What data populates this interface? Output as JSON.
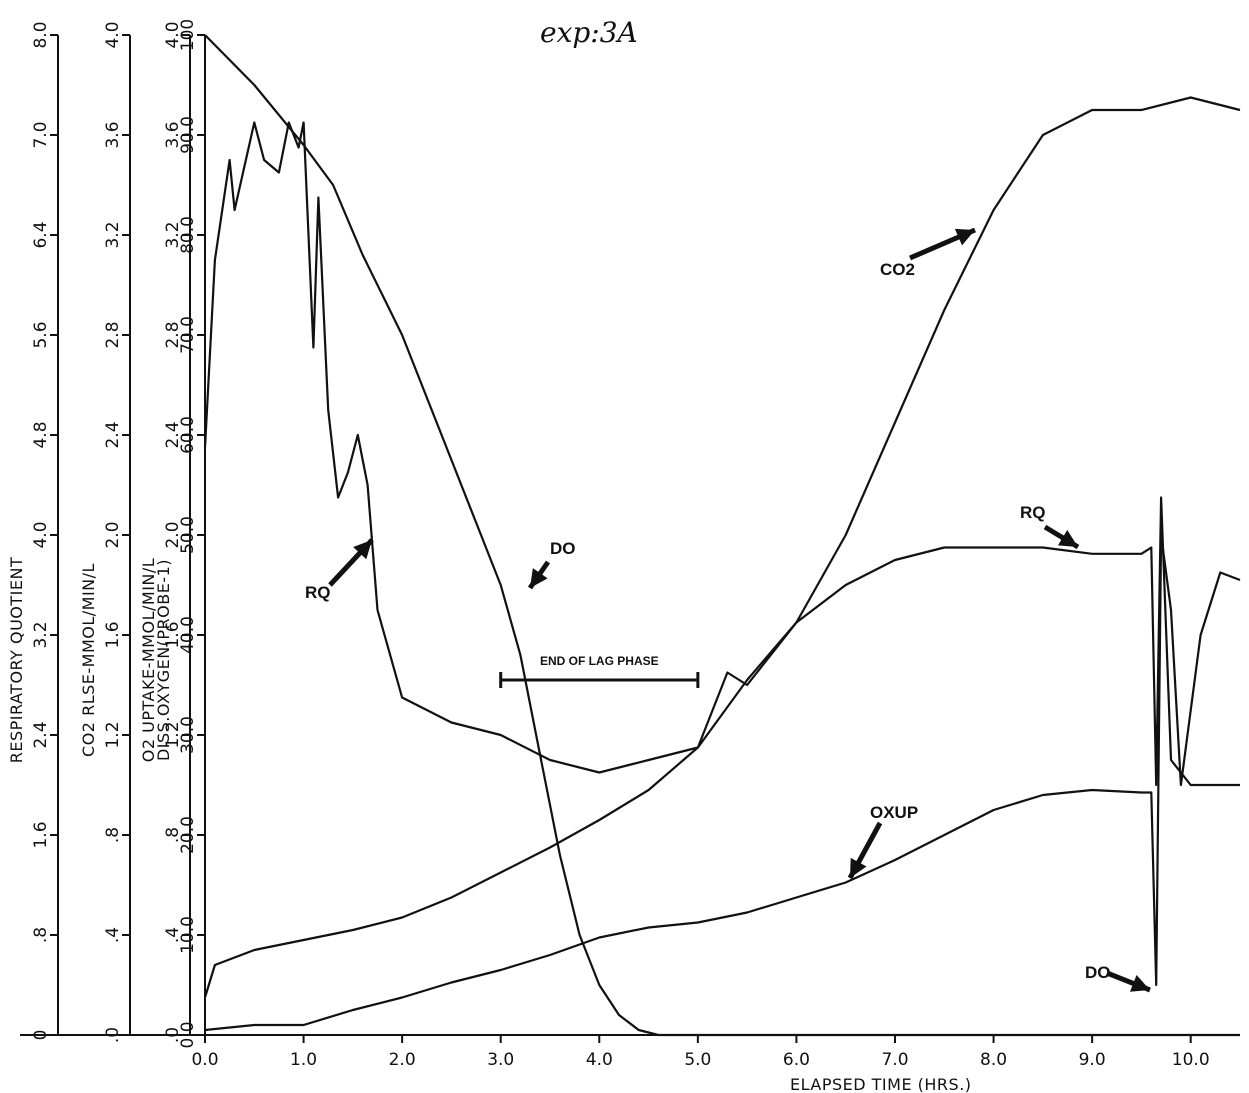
{
  "chart_data": {
    "type": "line",
    "title": "exp:3A",
    "xlabel": "ELAPSED TIME (HRS.)",
    "x_ticks": [
      "0.0",
      "1.0",
      "2.0",
      "3.0",
      "4.0",
      "5.0",
      "6.0",
      "7.0",
      "8.0",
      "9.0",
      "10.0"
    ],
    "xlim": [
      0,
      10.5
    ],
    "grid": false,
    "y_axes": [
      {
        "label": "RESPIRATORY QUOTIENT",
        "range": [
          0,
          8.0
        ],
        "ticks": [
          "0",
          ".8",
          "1.6",
          "2.4",
          "3.2",
          "4.0",
          "4.8",
          "5.6",
          "6.4",
          "7.0",
          "8.0"
        ]
      },
      {
        "label": "CO2 RLSE-MMOL/MIN/L",
        "range": [
          0,
          4.0
        ],
        "ticks": [
          ".0",
          ".4",
          ".8",
          "1.2",
          "1.6",
          "2.0",
          "2.4",
          "2.8",
          "3.2",
          "3.6",
          "4.0"
        ]
      },
      {
        "label": "O2 UPTAKE-MMOL/MIN/L",
        "range": [
          0,
          4.0
        ],
        "ticks": [
          ".0",
          ".4",
          ".8",
          "1.2",
          "1.6",
          "2.0",
          "2.4",
          "2.8",
          "3.2",
          "3.6",
          "4.0"
        ]
      },
      {
        "label": "DISS.OXYGEN(PROBE-1)",
        "range": [
          0,
          100
        ],
        "ticks": [
          "0.0",
          "10.0",
          "20.0",
          "30.0",
          "40.0",
          "50.0",
          "60.0",
          "70.0",
          "80.0",
          "90.0",
          "100"
        ]
      }
    ],
    "series": [
      {
        "name": "DO",
        "axis": "DISS.OXYGEN(PROBE-1)",
        "x": [
          0,
          0.5,
          1.0,
          1.3,
          1.6,
          2.0,
          2.4,
          2.8,
          3.0,
          3.2,
          3.4,
          3.6,
          3.8,
          4.0,
          4.2,
          4.4,
          4.6,
          5.0,
          5.2,
          5.5,
          5.8,
          6.0,
          6.5,
          7.0,
          7.5,
          8.0,
          8.5,
          9.0,
          9.5,
          10.0,
          10.5
        ],
        "y": [
          100,
          95,
          89,
          85,
          78,
          70,
          60,
          50,
          45,
          38,
          28,
          18,
          10,
          5,
          2,
          0.5,
          0,
          0,
          0,
          0,
          0,
          0,
          0,
          0,
          0,
          0,
          0,
          0,
          0,
          0,
          0
        ]
      },
      {
        "name": "RQ",
        "axis": "RESPIRATORY QUOTIENT",
        "x": [
          0,
          0.1,
          0.25,
          0.3,
          0.5,
          0.6,
          0.75,
          0.85,
          0.95,
          1.0,
          1.1,
          1.15,
          1.25,
          1.35,
          1.45,
          1.55,
          1.65,
          1.75,
          2.0,
          2.5,
          3.0,
          3.5,
          4.0,
          4.5,
          5.0,
          5.3,
          5.5,
          6.0,
          6.5,
          7.0,
          7.5,
          8.0,
          8.5,
          9.0,
          9.5,
          9.6,
          9.65,
          9.7,
          9.8,
          10.0,
          10.2,
          10.5
        ],
        "y": [
          4.7,
          6.2,
          7.0,
          6.6,
          7.3,
          7.0,
          6.9,
          7.3,
          7.1,
          7.3,
          5.5,
          6.7,
          5.0,
          4.3,
          4.5,
          4.8,
          4.4,
          3.4,
          2.7,
          2.5,
          2.4,
          2.2,
          2.1,
          2.2,
          2.3,
          2.9,
          2.8,
          3.3,
          3.6,
          3.8,
          3.9,
          3.9,
          3.9,
          3.85,
          3.85,
          3.9,
          2.0,
          4.3,
          2.2,
          2.0,
          2.0,
          2.0
        ]
      },
      {
        "name": "CO2",
        "axis": "CO2 RLSE-MMOL/MIN/L",
        "x": [
          0,
          0.1,
          0.5,
          1.0,
          1.5,
          2.0,
          2.5,
          3.0,
          3.5,
          4.0,
          4.5,
          5.0,
          5.5,
          6.0,
          6.5,
          7.0,
          7.5,
          8.0,
          8.5,
          9.0,
          9.5,
          10.0,
          10.5
        ],
        "y": [
          0.15,
          0.28,
          0.34,
          0.38,
          0.42,
          0.47,
          0.55,
          0.65,
          0.75,
          0.86,
          0.98,
          1.15,
          1.42,
          1.65,
          2.0,
          2.45,
          2.9,
          3.3,
          3.6,
          3.7,
          3.7,
          3.75,
          3.7
        ]
      },
      {
        "name": "OXUP",
        "axis": "O2 UPTAKE-MMOL/MIN/L",
        "x": [
          0,
          0.5,
          1.0,
          1.5,
          2.0,
          2.5,
          3.0,
          3.5,
          4.0,
          4.5,
          5.0,
          5.5,
          6.0,
          6.5,
          7.0,
          7.5,
          8.0,
          8.5,
          9.0,
          9.5,
          9.6,
          9.65,
          9.7,
          9.8,
          9.9,
          10.1,
          10.3,
          10.5
        ],
        "y": [
          0.02,
          0.04,
          0.04,
          0.1,
          0.15,
          0.21,
          0.26,
          0.32,
          0.39,
          0.43,
          0.45,
          0.49,
          0.55,
          0.61,
          0.7,
          0.8,
          0.9,
          0.96,
          0.98,
          0.97,
          0.97,
          0.2,
          2.0,
          1.7,
          1.0,
          1.6,
          1.85,
          1.82
        ]
      }
    ],
    "annotations": [
      {
        "text": "DO"
      },
      {
        "text": "RQ"
      },
      {
        "text": "CO2"
      },
      {
        "text": "OXUP"
      },
      {
        "text": "RQ"
      },
      {
        "text": "DO"
      },
      {
        "text": "END OF LAG PHASE",
        "x_range": [
          3.0,
          5.0
        ]
      }
    ]
  }
}
